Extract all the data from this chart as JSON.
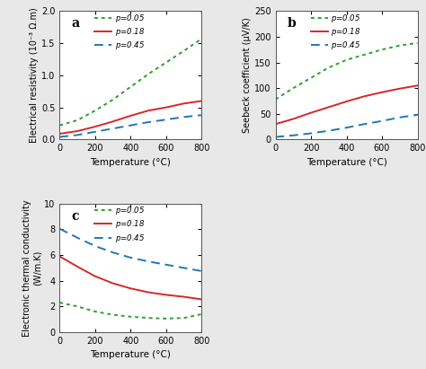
{
  "T": [
    0,
    100,
    200,
    300,
    400,
    500,
    600,
    700,
    800
  ],
  "panel_a": {
    "title": "a",
    "ylabel": "Electrical resistivity (10⁻³ Ω.m)",
    "xlabel": "Temperature (°C)",
    "ylim": [
      0,
      2.0
    ],
    "xlim": [
      0,
      800
    ],
    "yticks": [
      0.0,
      0.5,
      1.0,
      1.5,
      2.0
    ],
    "xticks": [
      0,
      200,
      400,
      600,
      800
    ],
    "p005": [
      0.22,
      0.3,
      0.45,
      0.62,
      0.82,
      1.02,
      1.2,
      1.38,
      1.57
    ],
    "p018": [
      0.09,
      0.13,
      0.2,
      0.28,
      0.37,
      0.45,
      0.5,
      0.56,
      0.6
    ],
    "p045": [
      0.04,
      0.07,
      0.12,
      0.17,
      0.22,
      0.27,
      0.31,
      0.35,
      0.38
    ]
  },
  "panel_b": {
    "title": "b",
    "ylabel": "Seebeck coefficient (μV/K)",
    "xlabel": "Temperature (°C)",
    "ylim": [
      0,
      250
    ],
    "xlim": [
      0,
      800
    ],
    "yticks": [
      0,
      50,
      100,
      150,
      200,
      250
    ],
    "xticks": [
      0,
      200,
      400,
      600,
      800
    ],
    "p005": [
      78,
      100,
      120,
      140,
      155,
      165,
      175,
      183,
      188
    ],
    "p018": [
      30,
      40,
      52,
      63,
      74,
      84,
      92,
      99,
      105
    ],
    "p045": [
      5,
      8,
      12,
      17,
      23,
      30,
      36,
      43,
      48
    ]
  },
  "panel_c": {
    "title": "c",
    "ylabel": "Electronic thermal conductivity\n(W/m.K)",
    "xlabel": "Temperature (°C)",
    "ylim": [
      0,
      10
    ],
    "xlim": [
      0,
      800
    ],
    "yticks": [
      0,
      2,
      4,
      6,
      8,
      10
    ],
    "xticks": [
      0,
      200,
      400,
      600,
      800
    ],
    "p005": [
      2.3,
      2.0,
      1.6,
      1.35,
      1.2,
      1.1,
      1.05,
      1.1,
      1.4
    ],
    "p018": [
      5.9,
      5.1,
      4.35,
      3.8,
      3.4,
      3.1,
      2.9,
      2.75,
      2.55
    ],
    "p045": [
      8.05,
      7.35,
      6.7,
      6.2,
      5.8,
      5.5,
      5.25,
      5.0,
      4.75
    ]
  },
  "colors": {
    "p005": "#2ca02c",
    "p018": "#d62728",
    "p045": "#1f77b4"
  },
  "linestyles": {
    "p005": [
      2,
      2
    ],
    "p018": "solid",
    "p045": [
      5,
      3
    ]
  },
  "linewidth": 1.4,
  "bg_color": "#ffffff",
  "fig_bg": "#e8e8e8"
}
